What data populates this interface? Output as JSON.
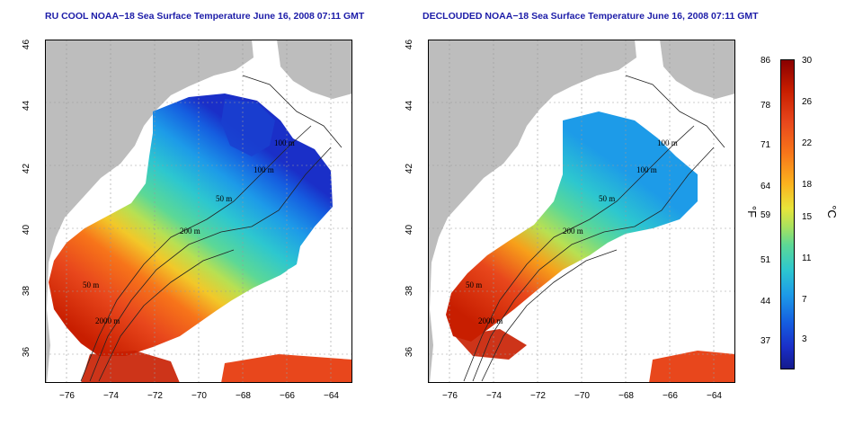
{
  "panels": [
    {
      "title": "RU COOL NOAA−18 Sea Surface Temperature June 16, 2008 07:11 GMT",
      "contour_labels": [
        "100 m",
        "100 m",
        "50 m",
        "200 m",
        "50 m",
        "2000 m"
      ]
    },
    {
      "title": "DECLOUDED NOAA−18 Sea Surface Temperature June 16, 2008 07:11 GMT",
      "contour_labels": [
        "100 m",
        "100 m",
        "50 m",
        "200 m",
        "50 m",
        "2000 m"
      ]
    }
  ],
  "axes": {
    "x_ticks": [
      "−76",
      "−74",
      "−72",
      "−70",
      "−68",
      "−66",
      "−64"
    ],
    "y_ticks": [
      "46",
      "44",
      "42",
      "40",
      "38",
      "36"
    ],
    "lon_range": [
      -77,
      -63
    ],
    "lat_range": [
      35,
      46
    ]
  },
  "colorbar": {
    "fahrenheit_ticks": [
      "86",
      "78",
      "71",
      "64",
      "59",
      "51",
      "44",
      "37"
    ],
    "celsius_ticks": [
      "30",
      "26",
      "22",
      "18",
      "15",
      "11",
      "7",
      "3"
    ],
    "fahrenheit_unit": "°F",
    "celsius_unit": "°C"
  },
  "colors": {
    "land": "#bdbdbd",
    "cloud": "#ffffff",
    "title": "#1c1ca8"
  }
}
